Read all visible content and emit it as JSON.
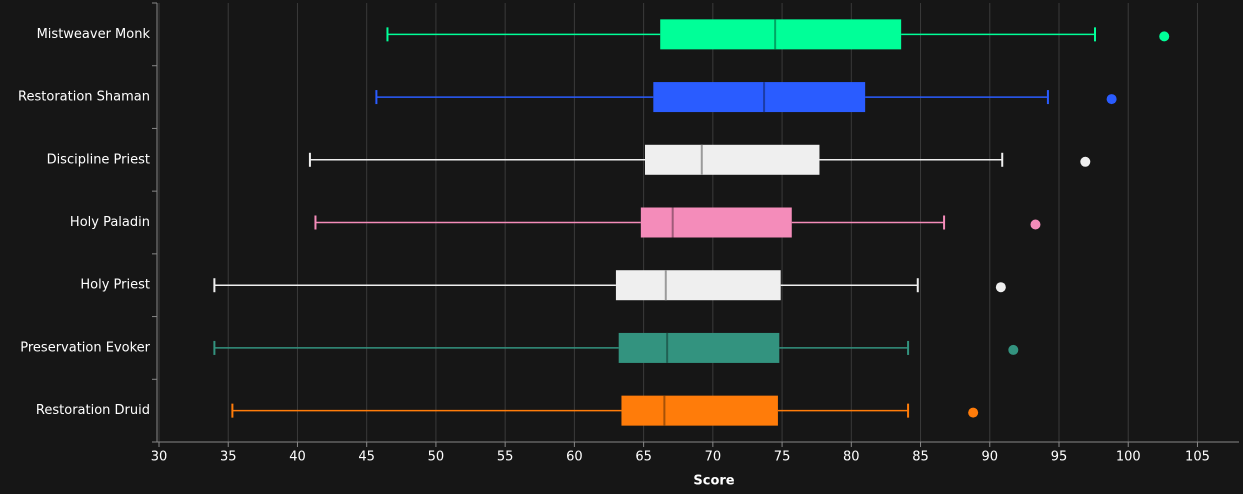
{
  "chart_data": {
    "type": "box",
    "x_label": "Score",
    "categories": [
      "Mistweaver Monk",
      "Restoration Shaman",
      "Discipline Priest",
      "Holy Paladin",
      "Holy Priest",
      "Preservation Evoker",
      "Restoration Druid"
    ],
    "series": [
      {
        "name": "Mistweaver Monk",
        "color": "#00ff98",
        "min": 46.5,
        "q1": 66.2,
        "median": 74.5,
        "q3": 83.6,
        "max": 97.6,
        "outliers": [
          102.6
        ]
      },
      {
        "name": "Restoration Shaman",
        "color": "#2a5cff",
        "min": 45.7,
        "q1": 65.7,
        "median": 73.7,
        "q3": 81.0,
        "max": 94.2,
        "outliers": [
          98.8
        ]
      },
      {
        "name": "Discipline Priest",
        "color": "#efefef",
        "min": 40.9,
        "q1": 65.1,
        "median": 69.2,
        "q3": 77.7,
        "max": 90.9,
        "outliers": [
          96.9
        ]
      },
      {
        "name": "Holy Paladin",
        "color": "#f48cba",
        "min": 41.3,
        "q1": 64.8,
        "median": 67.1,
        "q3": 75.7,
        "max": 86.7,
        "outliers": [
          93.3
        ]
      },
      {
        "name": "Holy Priest",
        "color": "#efefef",
        "min": 34.0,
        "q1": 63.0,
        "median": 66.6,
        "q3": 74.9,
        "max": 84.8,
        "outliers": [
          90.8
        ]
      },
      {
        "name": "Preservation Evoker",
        "color": "#33937f",
        "min": 34.0,
        "q1": 63.2,
        "median": 66.7,
        "q3": 74.8,
        "max": 84.1,
        "outliers": [
          91.7
        ]
      },
      {
        "name": "Restoration Druid",
        "color": "#ff7c0a",
        "min": 35.3,
        "q1": 63.4,
        "median": 66.5,
        "q3": 74.7,
        "max": 84.1,
        "outliers": [
          88.8
        ]
      }
    ],
    "xlim": [
      30,
      108
    ],
    "xticks": [
      30,
      35,
      40,
      45,
      50,
      55,
      60,
      65,
      70,
      75,
      80,
      85,
      90,
      95,
      100,
      105
    ],
    "grid": true
  }
}
